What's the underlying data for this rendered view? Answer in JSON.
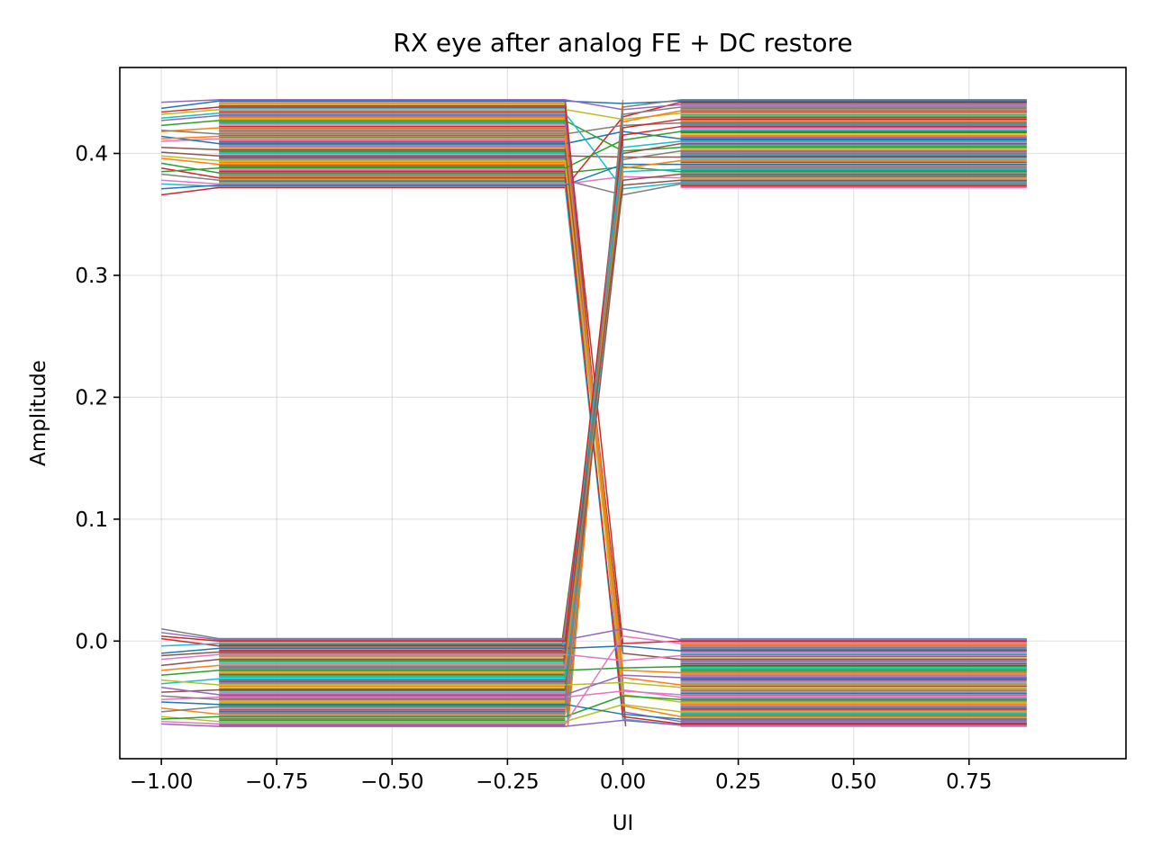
{
  "chart_data": {
    "type": "line",
    "title": "RX eye after analog FE + DC restore",
    "xlabel": "UI",
    "ylabel": "Amplitude",
    "xlim": [
      -1.09,
      1.09
    ],
    "ylim": [
      -0.0965,
      0.4705
    ],
    "xticks": [
      -1.0,
      -0.75,
      -0.5,
      -0.25,
      0.0,
      0.25,
      0.5,
      0.75
    ],
    "xtick_labels": [
      "−1.00",
      "−0.75",
      "−0.50",
      "−0.25",
      "0.00",
      "0.25",
      "0.50",
      "0.75"
    ],
    "yticks": [
      0.0,
      0.1,
      0.2,
      0.3,
      0.4
    ],
    "ytick_labels": [
      "0.0",
      "0.1",
      "0.2",
      "0.3",
      "0.4"
    ],
    "grid": true,
    "legend": false,
    "x": [
      -1.0,
      -0.875,
      -0.125,
      0.0,
      0.125,
      0.875
    ],
    "levels": {
      "high": [
        0.372,
        0.444
      ],
      "low": [
        -0.07,
        0.002
      ]
    },
    "series": [
      {
        "values": [
          0.437,
          0.443,
          0.443,
          0.441,
          0.443,
          0.443
        ]
      },
      {
        "values": [
          0.418,
          0.421,
          0.421,
          -0.053,
          -0.062,
          -0.062
        ]
      },
      {
        "values": [
          0.392,
          0.384,
          0.384,
          0.389,
          0.385,
          0.385
        ]
      },
      {
        "values": [
          0.366,
          0.372,
          0.372,
          0.43,
          0.442,
          0.442
        ]
      },
      {
        "values": [
          0.427,
          0.431,
          0.431,
          -0.058,
          -0.066,
          -0.066
        ]
      },
      {
        "values": [
          0.401,
          0.398,
          0.398,
          0.397,
          0.397,
          0.397
        ]
      },
      {
        "values": [
          0.41,
          0.412,
          0.412,
          -0.04,
          -0.046,
          -0.046
        ]
      },
      {
        "values": [
          0.383,
          0.378,
          0.378,
          0.366,
          0.375,
          0.375
        ]
      },
      {
        "values": [
          0.432,
          0.436,
          0.436,
          0.428,
          0.433,
          0.433
        ]
      },
      {
        "values": [
          0.375,
          0.373,
          0.373,
          -0.064,
          -0.069,
          -0.069
        ]
      },
      {
        "values": [
          0.414,
          0.408,
          0.408,
          0.418,
          0.412,
          0.412
        ]
      },
      {
        "values": [
          0.396,
          0.391,
          0.391,
          -0.03,
          -0.036,
          -0.036
        ]
      },
      {
        "values": [
          0.423,
          0.427,
          0.427,
          0.402,
          0.405,
          0.405
        ]
      },
      {
        "values": [
          0.388,
          0.38,
          0.38,
          -0.062,
          -0.068,
          -0.068
        ]
      },
      {
        "values": [
          0.442,
          0.444,
          0.444,
          0.436,
          0.44,
          0.44
        ]
      },
      {
        "values": [
          0.405,
          0.403,
          0.403,
          -0.01,
          -0.015,
          -0.015
        ]
      },
      {
        "values": [
          0.378,
          0.375,
          0.375,
          0.381,
          0.38,
          0.38
        ]
      },
      {
        "values": [
          0.419,
          0.416,
          0.416,
          0.423,
          0.425,
          0.425
        ]
      },
      {
        "values": [
          0.398,
          0.394,
          0.394,
          -0.044,
          -0.05,
          -0.05
        ]
      },
      {
        "values": [
          0.429,
          0.433,
          0.433,
          0.371,
          0.376,
          0.376
        ]
      },
      {
        "values": [
          0.371,
          0.374,
          0.374,
          0.391,
          0.391,
          0.391
        ]
      },
      {
        "values": [
          0.412,
          0.414,
          0.414,
          -0.024,
          -0.026,
          -0.026
        ]
      },
      {
        "values": [
          0.385,
          0.388,
          0.388,
          0.411,
          0.418,
          0.418
        ]
      },
      {
        "values": [
          0.434,
          0.438,
          0.438,
          -0.002,
          0.0,
          0.0
        ]
      },
      {
        "values": [
          0.007,
          0.001,
          0.001,
          0.01,
          0.001,
          0.001
        ]
      },
      {
        "values": [
          -0.02,
          -0.015,
          -0.015,
          0.4,
          0.408,
          0.408
        ]
      },
      {
        "values": [
          -0.048,
          -0.046,
          -0.046,
          -0.041,
          -0.044,
          -0.044
        ]
      },
      {
        "values": [
          0.01,
          0.002,
          0.002,
          0.395,
          0.402,
          0.402
        ]
      },
      {
        "values": [
          -0.062,
          -0.066,
          -0.066,
          -0.052,
          -0.058,
          -0.058
        ]
      },
      {
        "values": [
          -0.035,
          -0.031,
          -0.031,
          0.385,
          0.387,
          0.387
        ]
      },
      {
        "values": [
          -0.01,
          -0.006,
          -0.006,
          -0.004,
          -0.008,
          -0.008
        ]
      },
      {
        "values": [
          -0.055,
          -0.06,
          -0.06,
          0.426,
          0.435,
          0.435
        ]
      },
      {
        "values": [
          -0.028,
          -0.024,
          -0.024,
          -0.022,
          -0.021,
          -0.021
        ]
      },
      {
        "values": [
          0.002,
          -0.004,
          -0.004,
          0.415,
          0.422,
          0.422
        ]
      },
      {
        "values": [
          -0.068,
          -0.07,
          -0.07,
          -0.065,
          -0.069,
          -0.069
        ]
      },
      {
        "values": [
          -0.042,
          -0.04,
          -0.04,
          0.374,
          0.378,
          0.378
        ]
      },
      {
        "values": [
          -0.015,
          -0.011,
          -0.011,
          -0.016,
          -0.012,
          -0.012
        ]
      },
      {
        "values": [
          -0.058,
          -0.054,
          -0.054,
          0.438,
          0.444,
          0.444
        ]
      },
      {
        "values": [
          -0.032,
          -0.036,
          -0.036,
          -0.034,
          -0.038,
          -0.038
        ]
      },
      {
        "values": [
          -0.004,
          -0.002,
          -0.002,
          0.405,
          0.41,
          0.41
        ]
      },
      {
        "values": [
          -0.05,
          -0.052,
          -0.052,
          -0.06,
          -0.064,
          -0.064
        ]
      },
      {
        "values": [
          -0.024,
          -0.02,
          -0.02,
          0.388,
          0.394,
          0.394
        ]
      },
      {
        "values": [
          -0.064,
          -0.062,
          -0.062,
          -0.045,
          -0.048,
          -0.048
        ]
      },
      {
        "values": [
          0.004,
          0.0,
          0.0,
          0.421,
          0.428,
          0.428
        ]
      },
      {
        "values": [
          -0.038,
          -0.044,
          -0.044,
          -0.028,
          -0.03,
          -0.03
        ]
      },
      {
        "values": [
          -0.012,
          -0.009,
          -0.009,
          0.378,
          0.383,
          0.383
        ]
      },
      {
        "values": [
          -0.066,
          -0.068,
          -0.068,
          0.004,
          -0.002,
          -0.002
        ]
      },
      {
        "values": [
          -0.045,
          -0.048,
          -0.048,
          0.432,
          0.438,
          0.438
        ]
      }
    ],
    "colors": [
      "#1f77b4",
      "#ff7f0e",
      "#2ca02c",
      "#d62728",
      "#9467bd",
      "#8c564b",
      "#e377c2",
      "#7f7f7f",
      "#bcbd22",
      "#17becf"
    ]
  }
}
